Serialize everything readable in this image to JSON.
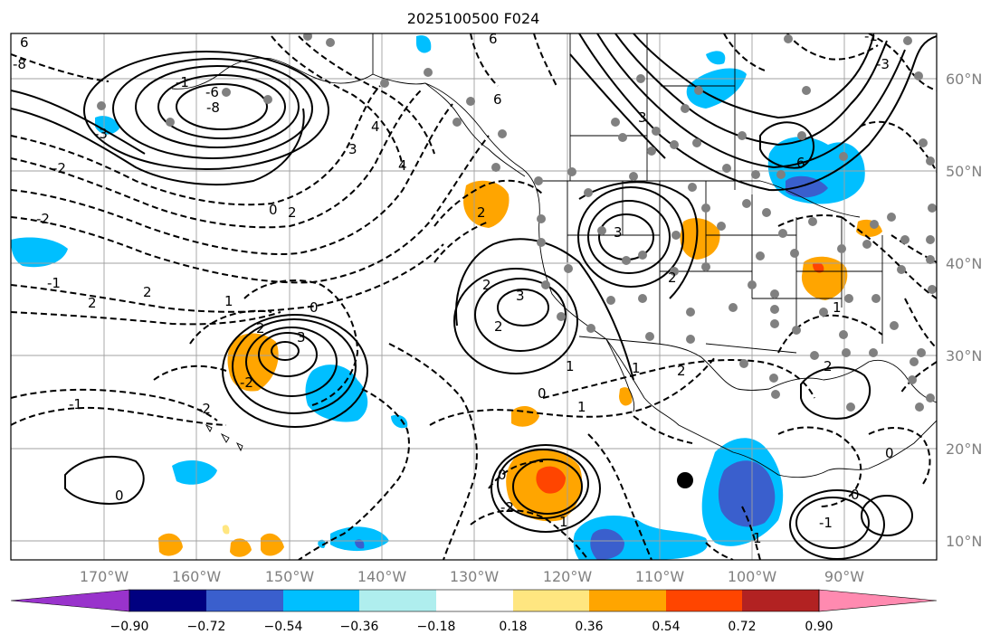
{
  "title": "2025100500 F024",
  "lat_labels": [
    "60°N",
    "50°N",
    "40°N",
    "30°N",
    "20°N",
    "10°N"
  ],
  "lon_labels": [
    "170°W",
    "160°W",
    "150°W",
    "140°W",
    "130°W",
    "120°W",
    "110°W",
    "100°W",
    "90°W"
  ],
  "colorbar": {
    "tick_labels": [
      "−0.90",
      "−0.72",
      "−0.54",
      "−0.36",
      "−0.18",
      "0.18",
      "0.36",
      "0.54",
      "0.72",
      "0.90"
    ],
    "colors": [
      "#9933cc",
      "#000080",
      "#3a5fcd",
      "#00bfff",
      "#afeeee",
      "#ffffff",
      "#ffe680",
      "#ffa500",
      "#ff4500",
      "#b22222",
      "#ff8ab0"
    ]
  },
  "contour_labels": {
    "gulf_low_1": "-8",
    "gulf_low_2": "-6",
    "gulf_low_3": "-1",
    "gulf_low_4": "-3",
    "nw_label": "6",
    "nw_label_2": "-8",
    "alaska_1": "6",
    "alaska_2": "4",
    "alaska_3": "3",
    "west_1": "-2",
    "west_2": "-2",
    "west_3": "-1",
    "west_4": "2",
    "west_5": "2",
    "mid_1": "0",
    "mid_2": "2",
    "mid_3": "1",
    "mid_4": "0",
    "hi_low_1": "2",
    "hi_low_2": "3",
    "hi_low_3": "-2",
    "sw_1": "-1",
    "sw_2": "-2",
    "sw_3": "0",
    "cal_1": "2",
    "cal_2": "3",
    "cal_3": "2",
    "cal_4": "2",
    "cal_5": "0",
    "cal_6": "1",
    "rocky_1": "3",
    "rocky_2": "2",
    "mex_1": "2",
    "mex_2": "1",
    "mex_3": "1",
    "tc_1": "0",
    "tc_2": "-2",
    "tc_3": "1",
    "gulf_1": "1",
    "gulf_2": "2",
    "gulf_3": "0",
    "gulf_4": "-1",
    "gulf_5": "0",
    "ne_1": "-3",
    "ne_2": "6",
    "ne_3": "-1",
    "ne_4": "1",
    "top_1": "6",
    "top_2": "4",
    "top_3": "3"
  },
  "marker": {
    "type": "storm-center",
    "color": "#000000"
  },
  "station_color": "#808080",
  "colors": {
    "coast": "#000000",
    "grid": "#a0a0a0",
    "label_gray": "#808080"
  }
}
